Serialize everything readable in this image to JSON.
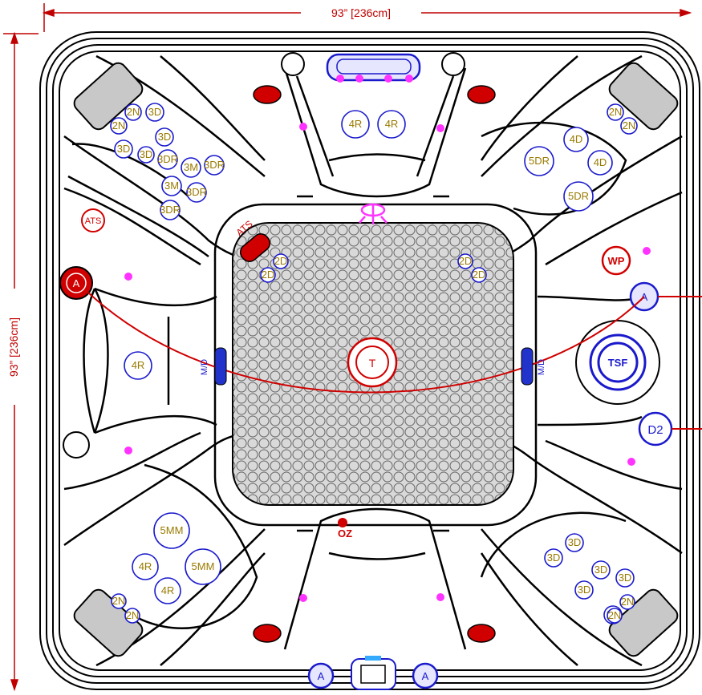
{
  "dimensions": {
    "width_label": "93” [236cm]",
    "height_label": "93” [236cm]"
  },
  "colors": {
    "outline": "#000000",
    "dimension": "#c00000",
    "jet_text": "#9a7a00",
    "jet_ring": "#1a1acc",
    "accent_red": "#d00000",
    "light": "#ff33ff",
    "pillow": "#c8c8c8"
  },
  "labels": {
    "ats": "ATS",
    "ats_valve": "ATS",
    "wp": "WP",
    "oz": "OZ",
    "tsf": "TSF",
    "t": "T",
    "d2": "D2",
    "md_left": "M/D",
    "md_right": "M/D",
    "a": "A"
  },
  "jets": [
    "2N",
    "3D",
    "2N",
    "3D",
    "3D",
    "3D",
    "3DR",
    "3DR",
    "3M",
    "3M",
    "3DR",
    "3DR",
    "4R",
    "4R",
    "2N",
    "2N",
    "4D",
    "5DR",
    "4D",
    "5DR",
    "2D",
    "2D",
    "2D",
    "2D",
    "4R",
    "5MM",
    "5MM",
    "4R",
    "4R",
    "2N",
    "2N",
    "3D",
    "3D",
    "3D",
    "3D",
    "3D",
    "3D",
    "2N",
    "2N"
  ]
}
